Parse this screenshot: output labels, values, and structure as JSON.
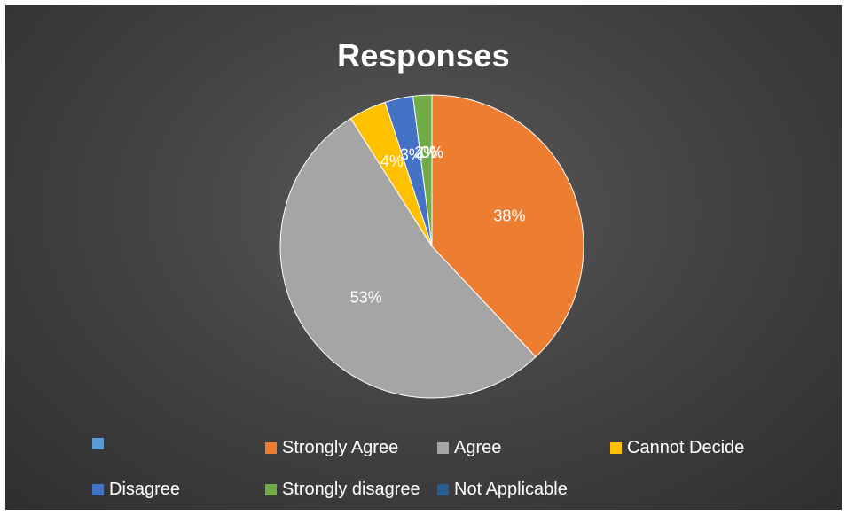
{
  "chart_data": {
    "type": "pie",
    "title": "Responses",
    "categories": [
      "",
      "Strongly Agree",
      "Agree",
      "Cannot Decide",
      "Disagree",
      "Strongly disagree",
      "Not Applicable"
    ],
    "values": [
      0,
      38,
      53,
      4,
      3,
      2,
      0
    ],
    "data_labels": [
      "0%",
      "38%",
      "53%",
      "4%",
      "3%",
      "2%",
      "0%"
    ],
    "colors": [
      "#5b9bd5",
      "#ed7d31",
      "#a5a5a5",
      "#ffc000",
      "#4472c4",
      "#70ad47",
      "#255e91"
    ],
    "legend_position": "bottom"
  }
}
